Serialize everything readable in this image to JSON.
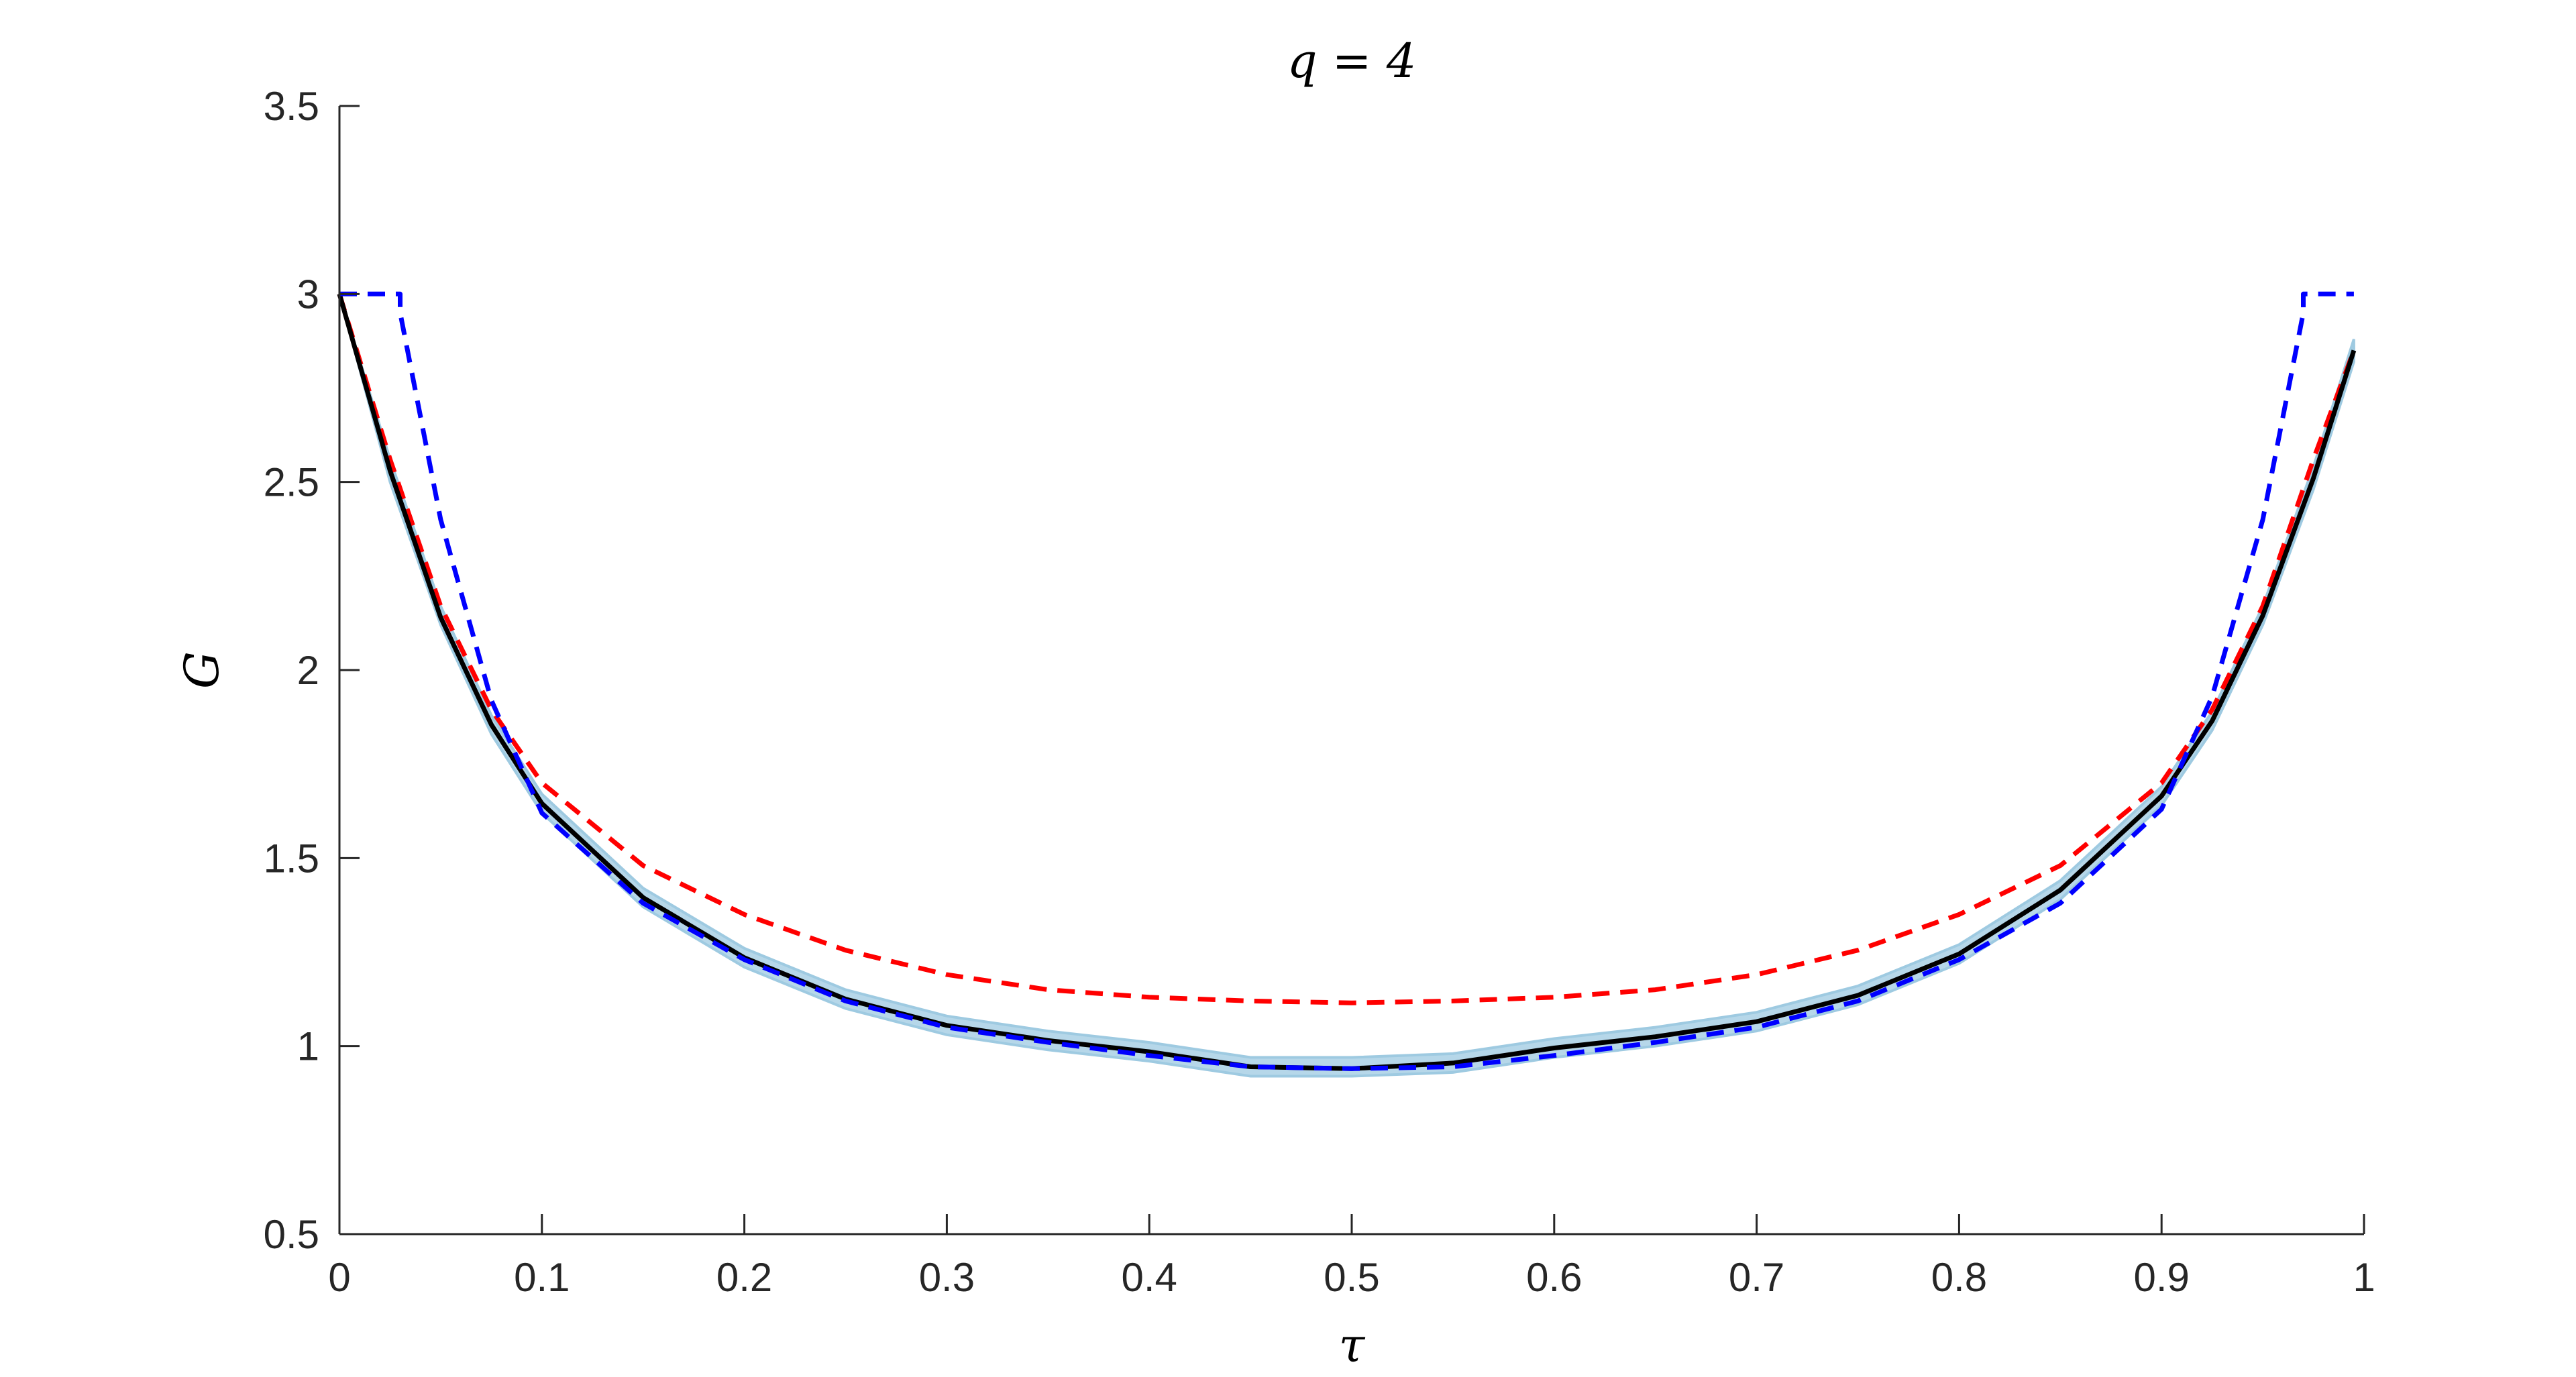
{
  "chart_data": {
    "type": "line",
    "title": "q = 4",
    "xlabel": "τ",
    "ylabel": "G",
    "xlim": [
      0,
      1
    ],
    "ylim": [
      0.5,
      3.5
    ],
    "xticks": [
      0,
      0.1,
      0.2,
      0.3,
      0.4,
      0.5,
      0.6,
      0.7,
      0.8,
      0.9,
      1
    ],
    "xtick_labels": [
      "0",
      "0.1",
      "0.2",
      "0.3",
      "0.4",
      "0.5",
      "0.6",
      "0.7",
      "0.8",
      "0.9",
      "1"
    ],
    "yticks": [
      0.5,
      1,
      1.5,
      2,
      2.5,
      3,
      3.5
    ],
    "ytick_labels": [
      "0.5",
      "1",
      "1.5",
      "2",
      "2.5",
      "3",
      "3.5"
    ],
    "grid": false,
    "legend": "none",
    "colors": {
      "axis": "#262626",
      "band": "#9ecae1",
      "black_line": "#000000",
      "red_dashed": "#ff0000",
      "blue_dashed": "#0000ff"
    },
    "series": [
      {
        "style": "shaded-band",
        "color": "#9ecae1",
        "x": [
          0.0,
          0.025,
          0.05,
          0.075,
          0.1,
          0.15,
          0.2,
          0.25,
          0.3,
          0.35,
          0.4,
          0.45,
          0.5,
          0.55,
          0.6,
          0.65,
          0.7,
          0.75,
          0.8,
          0.85,
          0.9,
          0.925,
          0.95,
          0.975,
          0.995
        ],
        "upper": [
          3.0,
          2.56,
          2.17,
          1.88,
          1.67,
          1.42,
          1.26,
          1.15,
          1.08,
          1.04,
          1.01,
          0.97,
          0.97,
          0.98,
          1.02,
          1.05,
          1.09,
          1.16,
          1.27,
          1.44,
          1.69,
          1.89,
          2.17,
          2.54,
          2.88
        ],
        "lower": [
          3.0,
          2.5,
          2.12,
          1.83,
          1.62,
          1.37,
          1.21,
          1.1,
          1.03,
          0.99,
          0.96,
          0.92,
          0.92,
          0.93,
          0.97,
          1.0,
          1.04,
          1.11,
          1.22,
          1.39,
          1.64,
          1.84,
          2.12,
          2.48,
          2.82
        ]
      },
      {
        "style": "solid",
        "color": "#000000",
        "x": [
          0.0,
          0.025,
          0.05,
          0.075,
          0.1,
          0.15,
          0.2,
          0.25,
          0.3,
          0.35,
          0.4,
          0.45,
          0.5,
          0.55,
          0.6,
          0.65,
          0.7,
          0.75,
          0.8,
          0.85,
          0.9,
          0.925,
          0.95,
          0.975,
          0.995
        ],
        "y": [
          3.0,
          2.53,
          2.14,
          1.855,
          1.645,
          1.395,
          1.235,
          1.125,
          1.055,
          1.015,
          0.985,
          0.945,
          0.94,
          0.955,
          0.995,
          1.025,
          1.065,
          1.135,
          1.245,
          1.415,
          1.665,
          1.865,
          2.145,
          2.51,
          2.85
        ]
      },
      {
        "style": "dashed",
        "color": "#ff0000",
        "x": [
          0.0,
          0.025,
          0.05,
          0.075,
          0.1,
          0.15,
          0.2,
          0.25,
          0.3,
          0.35,
          0.4,
          0.45,
          0.5,
          0.55,
          0.6,
          0.65,
          0.7,
          0.75,
          0.8,
          0.85,
          0.9,
          0.925,
          0.95,
          0.975,
          0.995
        ],
        "y": [
          3.0,
          2.56,
          2.17,
          1.895,
          1.7,
          1.48,
          1.35,
          1.255,
          1.19,
          1.15,
          1.13,
          1.12,
          1.115,
          1.12,
          1.13,
          1.15,
          1.19,
          1.255,
          1.35,
          1.48,
          1.7,
          1.895,
          2.17,
          2.56,
          2.85
        ]
      },
      {
        "style": "dashed",
        "color": "#0000ff",
        "x": [
          0.0,
          0.03,
          0.03,
          0.05,
          0.075,
          0.1,
          0.15,
          0.2,
          0.25,
          0.3,
          0.35,
          0.4,
          0.45,
          0.5,
          0.55,
          0.6,
          0.65,
          0.7,
          0.75,
          0.8,
          0.85,
          0.9,
          0.925,
          0.95,
          0.97,
          0.97,
          0.995
        ],
        "y": [
          3.0,
          3.0,
          2.95,
          2.4,
          1.92,
          1.62,
          1.38,
          1.23,
          1.12,
          1.05,
          1.01,
          0.975,
          0.945,
          0.94,
          0.945,
          0.975,
          1.01,
          1.05,
          1.12,
          1.23,
          1.38,
          1.63,
          1.93,
          2.4,
          2.95,
          3.0,
          3.0
        ]
      }
    ]
  }
}
